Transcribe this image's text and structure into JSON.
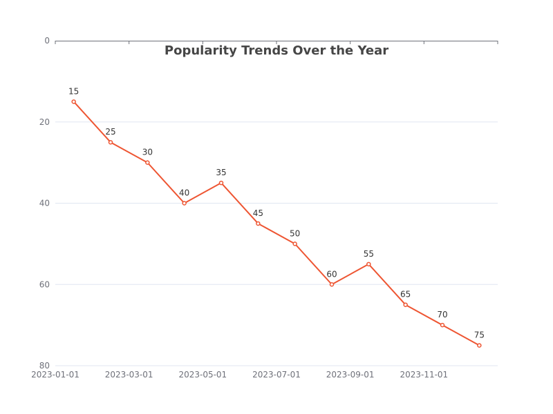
{
  "colors": {
    "series": "#ee5532"
  },
  "chart_data": {
    "type": "line",
    "title": "Popularity Trends Over the Year",
    "xlabel": "",
    "ylabel": "",
    "x": [
      "2023-01-01",
      "2023-02-01",
      "2023-03-01",
      "2023-04-01",
      "2023-05-01",
      "2023-06-01",
      "2023-07-01",
      "2023-08-01",
      "2023-09-01",
      "2023-10-01",
      "2023-11-01",
      "2023-12-01"
    ],
    "x_tick_labels": [
      "2023-01-01",
      "2023-03-01",
      "2023-05-01",
      "2023-07-01",
      "2023-09-01",
      "2023-11-01"
    ],
    "values": [
      15,
      25,
      30,
      40,
      35,
      45,
      50,
      60,
      55,
      65,
      70,
      75
    ],
    "data_labels": [
      "15",
      "25",
      "30",
      "40",
      "35",
      "45",
      "50",
      "60",
      "55",
      "65",
      "70",
      "75"
    ],
    "y_ticks": [
      "0",
      "20",
      "40",
      "60",
      "80"
    ],
    "ylim": [
      0,
      80
    ],
    "y_inverted": true,
    "x_axis_position": "top",
    "grid": true,
    "legend": "none"
  }
}
